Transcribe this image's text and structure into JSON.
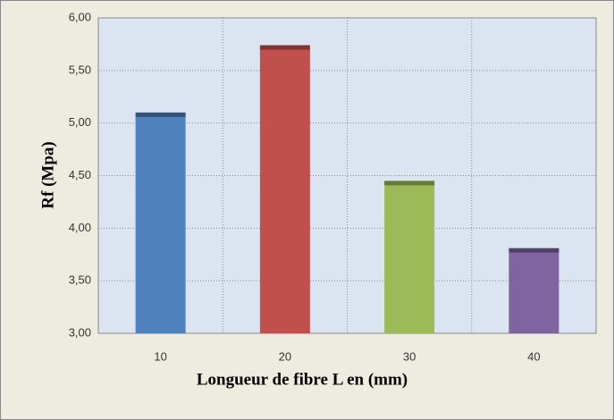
{
  "chart_data": {
    "type": "bar",
    "x_label": "Longueur de fibre L en  (mm)",
    "y_label": "Rf (Mpa)",
    "categories": [
      "10",
      "20",
      "30",
      "40"
    ],
    "values": [
      5.1,
      5.74,
      4.45,
      3.81
    ],
    "colors": [
      "#4f81bd",
      "#c0504d",
      "#9bbb59",
      "#8064a2"
    ],
    "ylim": [
      3,
      6
    ],
    "yticks": [
      {
        "value": 3,
        "label": "3,00"
      },
      {
        "value": 3.5,
        "label": "3,50"
      },
      {
        "value": 4,
        "label": "4,00"
      },
      {
        "value": 4.5,
        "label": "4,50"
      },
      {
        "value": 5,
        "label": "5,00"
      },
      {
        "value": 5.5,
        "label": "5,50"
      },
      {
        "value": 6,
        "label": "6,00"
      }
    ],
    "grid": true
  }
}
